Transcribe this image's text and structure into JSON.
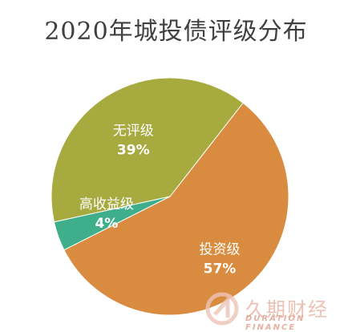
{
  "chart_data": {
    "type": "pie",
    "title": "2020年城投债评级分布",
    "slices": [
      {
        "name": "投资级",
        "value": 57,
        "label": "57%",
        "color": "#D98C3F"
      },
      {
        "name": "高收益级",
        "value": 4,
        "label": "4%",
        "color": "#3FAE8A"
      },
      {
        "name": "无评级",
        "value": 39,
        "label": "39%",
        "color": "#A6AA3F"
      }
    ]
  },
  "watermark": {
    "cn": "久期财经",
    "en": "DURATION FINANCE"
  }
}
